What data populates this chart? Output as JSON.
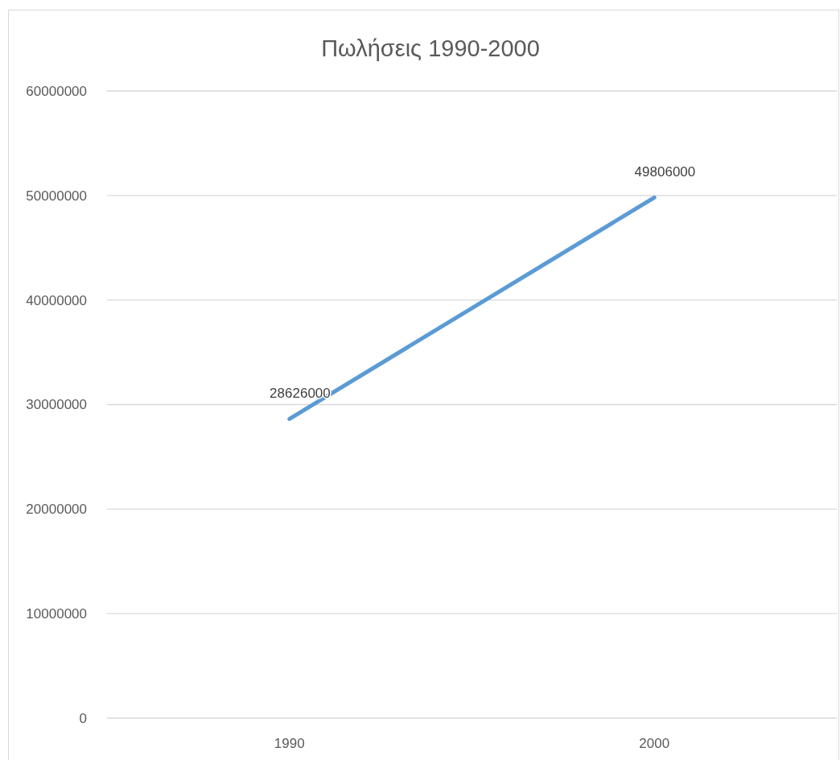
{
  "chart_data": {
    "type": "line",
    "title": "Πωλήσεις 1990-2000",
    "categories": [
      "1990",
      "2000"
    ],
    "series": [
      {
        "color": "#5b9bd5",
        "values": [
          28626000,
          49806000
        ]
      }
    ],
    "ylim": [
      0,
      60000000
    ],
    "yticks": [
      0,
      10000000,
      20000000,
      30000000,
      40000000,
      50000000,
      60000000
    ],
    "grid": "y",
    "data_labels": true,
    "marker": "none",
    "line_style": "solid"
  }
}
